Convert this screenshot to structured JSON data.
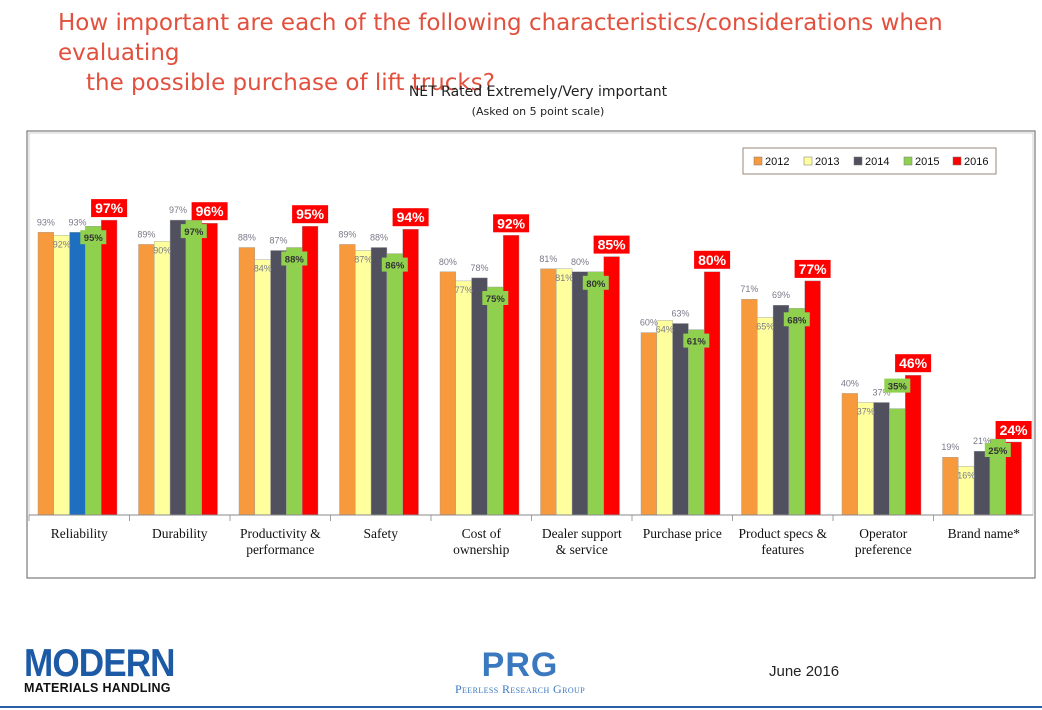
{
  "title_line1": "How important are each of the following characteristics/considerations when evaluating",
  "title_line2": "the possible purchase of lift trucks?",
  "subtitle": "NET Rated Extremely/Very important",
  "subnote": "(Asked on 5 point scale)",
  "footer": {
    "logo_left_line1": "MODERN",
    "logo_left_line2": "MATERIALS HANDLING",
    "logo_mid_line1": "PRG",
    "logo_mid_line2": "Peerless Research Group",
    "date": "June 2016"
  },
  "colors": {
    "2012": "#f79a3e",
    "2013": "#ffff9e",
    "2014": "#50505f",
    "2015": "#8fd04f",
    "2016": "#ff0000",
    "highlight_2014_reliability": "#1f6fc0",
    "title": "#e2503e"
  },
  "chart_data": {
    "type": "bar",
    "title": "NET Rated Extremely/Very important",
    "subtitle": "(Asked on 5 point scale)",
    "ylim": [
      0,
      100
    ],
    "grid": false,
    "legend_position": "top-right",
    "categories": [
      "Reliability",
      "Durability",
      "Productivity & performance",
      "Safety",
      "Cost of ownership",
      "Dealer support & service",
      "Purchase price",
      "Product specs & features",
      "Operator preference",
      "Brand name*"
    ],
    "category_lines": [
      [
        "Reliability"
      ],
      [
        "Durability"
      ],
      [
        "Productivity &",
        "performance"
      ],
      [
        "Safety"
      ],
      [
        "Cost of",
        "ownership"
      ],
      [
        "Dealer support",
        "& service"
      ],
      [
        "Purchase price"
      ],
      [
        "Product specs &",
        "features"
      ],
      [
        "Operator",
        "preference"
      ],
      [
        "Brand name*"
      ]
    ],
    "series": [
      {
        "name": "2012",
        "values": [
          93,
          89,
          88,
          89,
          80,
          81,
          60,
          71,
          40,
          19
        ],
        "labels": [
          "93%",
          "89%",
          "88%",
          "89%",
          "80%",
          "81%",
          "60%",
          "71%",
          "40%",
          "19%"
        ]
      },
      {
        "name": "2013",
        "values": [
          92,
          90,
          84,
          87,
          77,
          81,
          64,
          65,
          37,
          16
        ],
        "labels": [
          "92%",
          "90%",
          "84%",
          "87%",
          "77%",
          "81%",
          "64%",
          "65%",
          "37%",
          "16%"
        ]
      },
      {
        "name": "2014",
        "values": [
          93,
          97,
          87,
          88,
          78,
          80,
          63,
          69,
          37,
          21
        ],
        "labels": [
          "93%",
          "97%",
          "87%",
          "88%",
          "78%",
          "80%",
          "63%",
          "69%",
          "37%",
          "21%"
        ]
      },
      {
        "name": "2015",
        "values": [
          95,
          97,
          88,
          86,
          75,
          80,
          61,
          68,
          35,
          25
        ],
        "labels": [
          "95%",
          "97%",
          "88%",
          "86%",
          "75%",
          "80%",
          "61%",
          "68%",
          "35%",
          "25%"
        ]
      },
      {
        "name": "2016",
        "values": [
          97,
          96,
          95,
          94,
          92,
          85,
          80,
          77,
          46,
          24
        ],
        "labels": [
          "97%",
          "96%",
          "95%",
          "94%",
          "92%",
          "85%",
          "80%",
          "77%",
          "46%",
          "24%"
        ]
      }
    ]
  }
}
